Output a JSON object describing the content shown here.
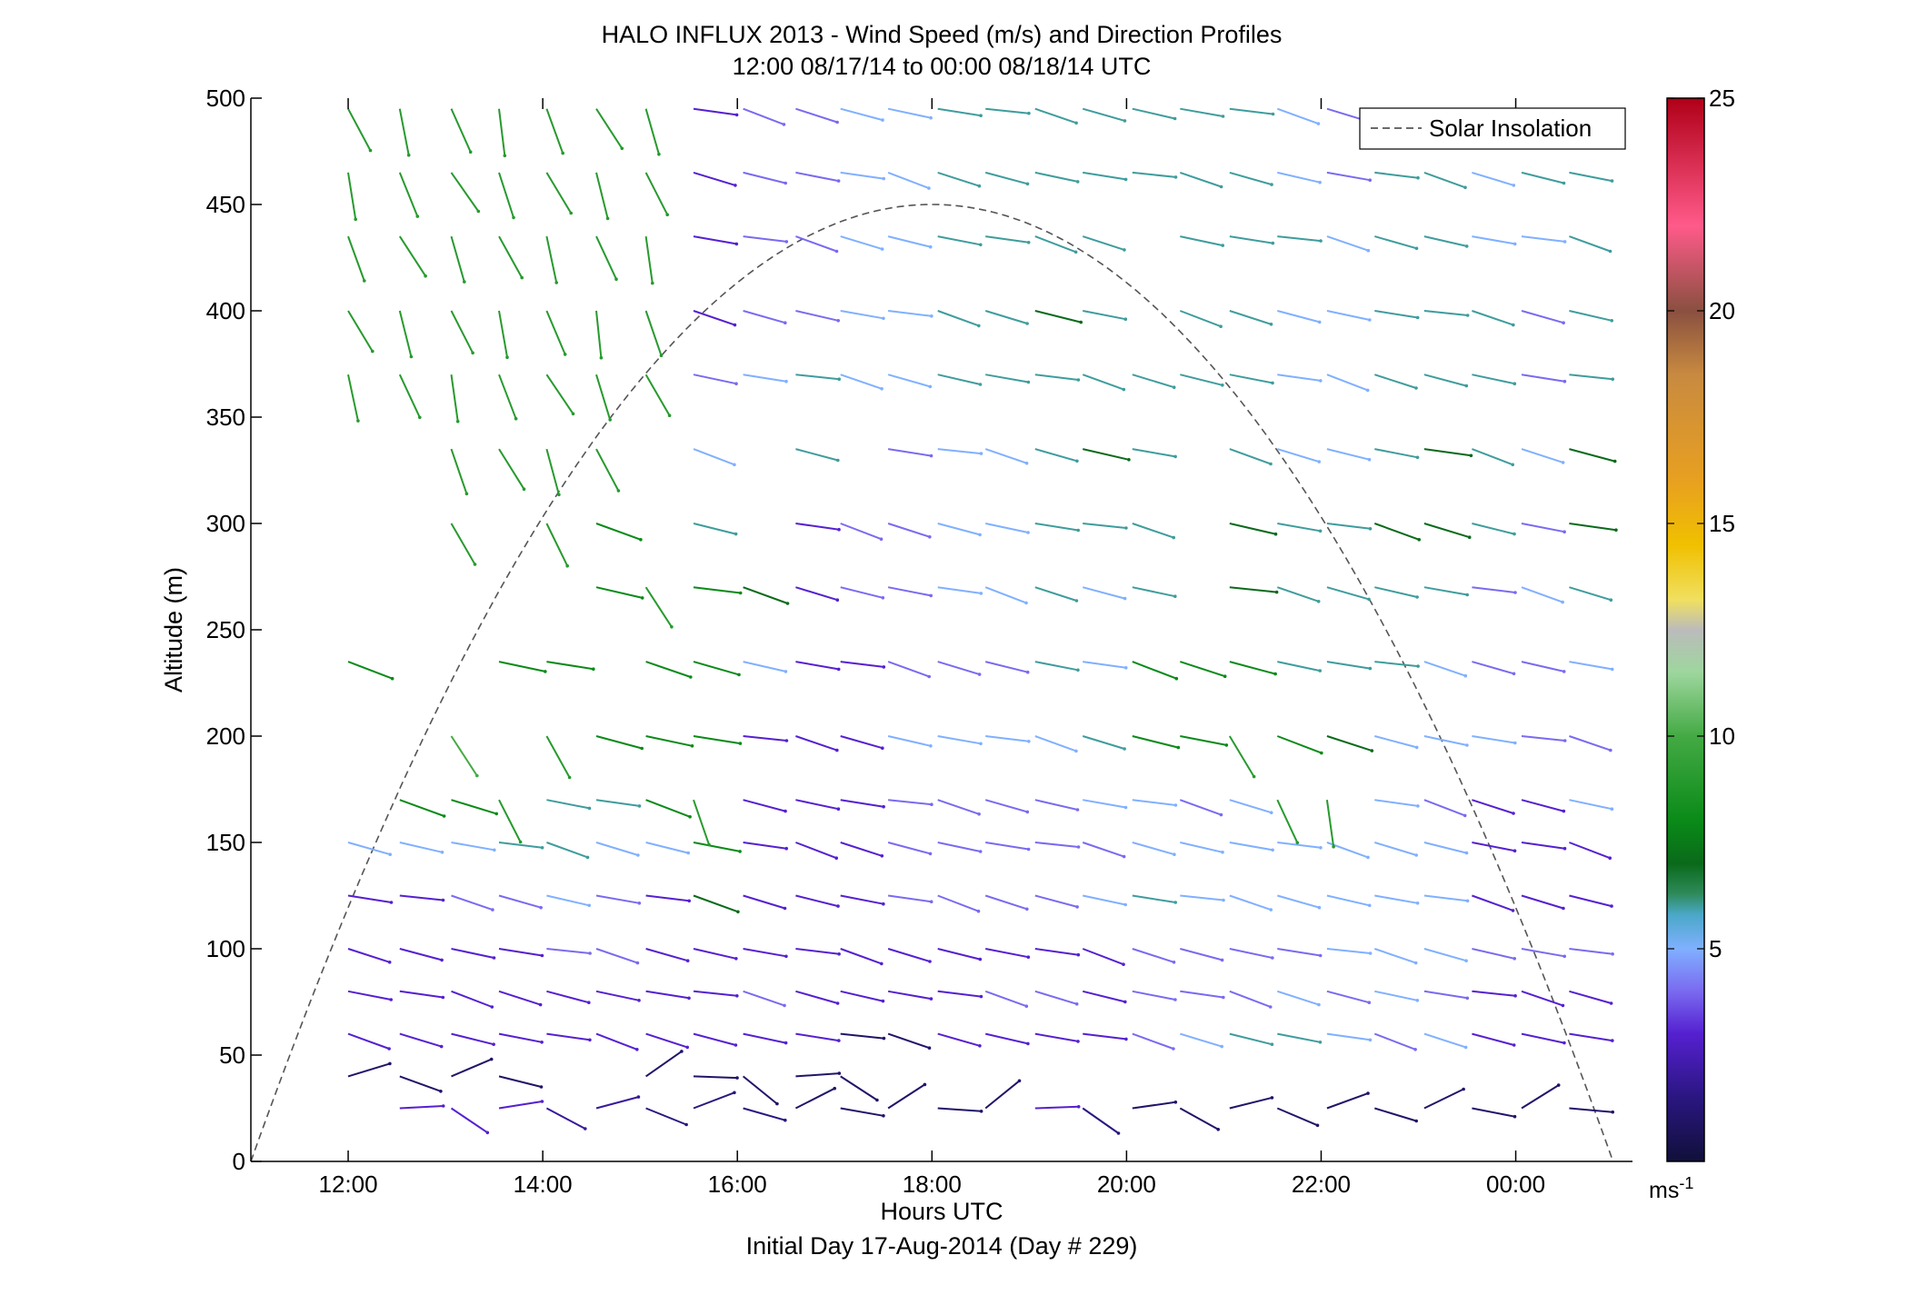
{
  "chart_data": {
    "type": "wind-barb-profile",
    "title_line1": "HALO INFLUX 2013 - Wind Speed (m/s) and Direction Profiles",
    "title_line2": "12:00 08/17/14 to 00:00 08/18/14  UTC",
    "xlabel": "Hours UTC",
    "xlabel2": "Initial Day 17-Aug-2014 (Day # 229)",
    "ylabel": "Altitude (m)",
    "xlim_hours": [
      11,
      25.2
    ],
    "ylim": [
      0,
      500
    ],
    "x_ticks": [
      {
        "hour": 12,
        "label": "12:00"
      },
      {
        "hour": 14,
        "label": "14:00"
      },
      {
        "hour": 16,
        "label": "16:00"
      },
      {
        "hour": 18,
        "label": "18:00"
      },
      {
        "hour": 20,
        "label": "20:00"
      },
      {
        "hour": 22,
        "label": "22:00"
      },
      {
        "hour": 24,
        "label": "00:00"
      }
    ],
    "y_ticks": [
      {
        "value": 0,
        "label": "0"
      },
      {
        "value": 50,
        "label": "50"
      },
      {
        "value": 100,
        "label": "100"
      },
      {
        "value": 150,
        "label": "150"
      },
      {
        "value": 200,
        "label": "200"
      },
      {
        "value": 250,
        "label": "250"
      },
      {
        "value": 300,
        "label": "300"
      },
      {
        "value": 350,
        "label": "350"
      },
      {
        "value": 400,
        "label": "400"
      },
      {
        "value": 450,
        "label": "450"
      },
      {
        "value": 500,
        "label": "500"
      }
    ],
    "legend": {
      "label": "Solar Insolation",
      "style": "dashed",
      "color": "#555555",
      "placement": "top-right"
    },
    "solar_insolation": {
      "start_hour": 11.0,
      "peak_hour": 17.8,
      "end_hour": 25.0,
      "peak_altitude": 450
    },
    "colorbar": {
      "min": 0,
      "max": 25,
      "ticks": [
        {
          "value": 5,
          "label": "5"
        },
        {
          "value": 10,
          "label": "10"
        },
        {
          "value": 15,
          "label": "15"
        },
        {
          "value": 20,
          "label": "20"
        },
        {
          "value": 25,
          "label": "25"
        }
      ],
      "unit_label": "ms",
      "unit_exponent": "-1",
      "stops": [
        {
          "v": 0,
          "c": "#10103a"
        },
        {
          "v": 1.5,
          "c": "#2a1680"
        },
        {
          "v": 3,
          "c": "#5520d0"
        },
        {
          "v": 4,
          "c": "#7a6af0"
        },
        {
          "v": 5,
          "c": "#80b0ff"
        },
        {
          "v": 5.8,
          "c": "#4aa8c8"
        },
        {
          "v": 6.3,
          "c": "#2e8a5a"
        },
        {
          "v": 7,
          "c": "#0a6a1a"
        },
        {
          "v": 8,
          "c": "#0a8a18"
        },
        {
          "v": 10,
          "c": "#44aa44"
        },
        {
          "v": 11.5,
          "c": "#9ed69e"
        },
        {
          "v": 12.5,
          "c": "#bbbbbb"
        },
        {
          "v": 13.2,
          "c": "#f0e060"
        },
        {
          "v": 14.5,
          "c": "#f0c000"
        },
        {
          "v": 16,
          "c": "#e8a020"
        },
        {
          "v": 18.5,
          "c": "#c88a40"
        },
        {
          "v": 20,
          "c": "#8a5040"
        },
        {
          "v": 22,
          "c": "#ff5a8a"
        },
        {
          "v": 25,
          "c": "#b00018"
        }
      ]
    },
    "time_columns_hours": [
      12.0,
      12.53,
      13.06,
      13.55,
      14.04,
      14.55,
      15.06,
      15.55,
      16.06,
      16.6,
      17.06,
      17.55,
      18.06,
      18.55,
      19.06,
      19.55,
      20.06,
      20.55,
      21.06,
      21.55,
      22.06,
      22.55,
      23.06,
      23.55,
      24.06,
      24.55
    ],
    "wind_speeds_by_altitude": [
      {
        "alt": 25,
        "speeds": [
          null,
          3,
          3,
          3,
          2,
          2,
          1.5,
          1.5,
          1.5,
          1,
          1,
          1,
          1,
          1,
          3,
          1.5,
          1,
          1,
          1,
          1,
          1,
          1,
          1,
          1,
          1,
          1
        ]
      },
      {
        "alt": 40,
        "speeds": [
          1,
          1,
          1,
          1,
          null,
          null,
          1,
          1,
          1,
          1,
          1,
          null,
          null,
          null,
          null,
          null,
          null,
          null,
          null,
          null,
          null,
          null,
          null,
          null,
          null,
          null
        ]
      },
      {
        "alt": 60,
        "speeds": [
          3,
          3,
          3,
          3,
          3,
          3,
          3,
          3,
          3,
          3,
          1,
          1,
          3,
          3,
          3,
          3,
          4,
          5,
          6,
          6,
          5,
          4,
          5,
          3,
          3,
          3
        ]
      },
      {
        "alt": 80,
        "speeds": [
          3,
          3,
          3,
          3,
          3,
          3,
          3,
          3,
          4,
          3,
          3,
          3,
          3,
          4,
          4,
          3,
          4,
          4,
          4,
          5,
          4,
          5,
          4,
          3,
          3,
          3
        ]
      },
      {
        "alt": 100,
        "speeds": [
          3,
          3,
          3,
          3,
          4,
          4,
          3,
          3,
          3,
          3,
          3,
          3,
          3,
          3,
          3,
          3,
          4,
          4,
          4,
          4,
          5,
          5,
          5,
          4,
          4,
          4
        ]
      },
      {
        "alt": 125,
        "speeds": [
          3,
          3,
          4,
          4,
          5,
          4,
          3,
          7,
          3,
          3,
          3,
          4,
          4,
          4,
          4,
          5,
          6,
          5,
          5,
          5,
          5,
          5,
          5,
          3,
          3,
          3
        ]
      },
      {
        "alt": 150,
        "speeds": [
          5,
          5,
          5,
          6,
          6,
          5,
          5,
          8,
          3,
          3,
          3,
          4,
          4,
          4,
          4,
          4,
          5,
          5,
          5,
          5,
          5,
          5,
          5,
          3,
          3,
          3
        ]
      },
      {
        "alt": 170,
        "speeds": [
          null,
          8,
          8,
          9,
          6,
          6,
          8,
          9,
          3,
          3,
          3,
          4,
          4,
          4,
          4,
          5,
          5,
          4,
          5,
          9,
          9,
          5,
          4,
          3,
          3,
          5
        ]
      },
      {
        "alt": 200,
        "speeds": [
          null,
          null,
          10,
          null,
          9,
          8,
          8,
          8,
          3,
          3,
          3,
          5,
          5,
          5,
          5,
          6,
          8,
          8,
          9,
          8,
          7,
          5,
          5,
          5,
          4,
          4
        ]
      },
      {
        "alt": 235,
        "speeds": [
          8,
          null,
          null,
          8,
          8,
          null,
          8,
          8,
          5,
          3,
          3,
          4,
          4,
          4,
          6,
          5,
          8,
          8,
          8,
          6,
          6,
          6,
          5,
          4,
          4,
          5
        ]
      },
      {
        "alt": 270,
        "speeds": [
          null,
          null,
          null,
          null,
          null,
          8,
          9,
          8,
          7,
          3,
          4,
          4,
          5,
          5,
          6,
          5,
          6,
          null,
          7,
          6,
          6,
          6,
          6,
          4,
          5,
          6
        ]
      },
      {
        "alt": 300,
        "speeds": [
          null,
          null,
          9,
          null,
          9,
          8,
          null,
          6,
          null,
          3,
          4,
          4,
          5,
          5,
          6,
          6,
          6,
          null,
          7,
          6,
          6,
          7,
          7,
          6,
          4,
          7
        ]
      },
      {
        "alt": 335,
        "speeds": [
          null,
          null,
          9,
          9,
          9,
          9,
          null,
          5,
          null,
          6,
          null,
          4,
          5,
          5,
          6,
          7,
          6,
          null,
          6,
          5,
          5,
          6,
          7,
          6,
          5,
          7
        ]
      },
      {
        "alt": 370,
        "speeds": [
          9,
          9,
          9,
          9,
          9,
          9,
          9,
          4,
          5,
          6,
          5,
          5,
          6,
          6,
          6,
          6,
          6,
          6,
          6,
          5,
          5,
          6,
          6,
          6,
          4,
          6
        ]
      },
      {
        "alt": 400,
        "speeds": [
          9,
          9,
          9,
          9,
          9,
          9,
          9,
          3,
          4,
          4,
          5,
          5,
          6,
          6,
          7,
          6,
          null,
          6,
          6,
          5,
          5,
          6,
          6,
          6,
          4,
          6
        ]
      },
      {
        "alt": 435,
        "speeds": [
          9,
          9,
          9,
          9,
          9,
          9,
          9,
          3,
          4,
          4,
          5,
          5,
          6,
          6,
          6,
          6,
          null,
          6,
          6,
          6,
          5,
          6,
          6,
          5,
          5,
          6
        ]
      },
      {
        "alt": 465,
        "speeds": [
          9,
          9,
          9,
          9,
          9,
          9,
          9,
          3,
          4,
          4,
          5,
          5,
          6,
          6,
          6,
          6,
          6,
          6,
          6,
          5,
          4,
          6,
          6,
          5,
          6,
          6
        ]
      },
      {
        "alt": 495,
        "speeds": [
          9,
          9,
          9,
          9,
          9,
          9,
          9,
          3,
          4,
          4,
          5,
          5,
          6,
          6,
          6,
          6,
          6,
          6,
          6,
          5,
          4,
          6,
          6,
          5,
          6,
          6
        ]
      }
    ]
  }
}
